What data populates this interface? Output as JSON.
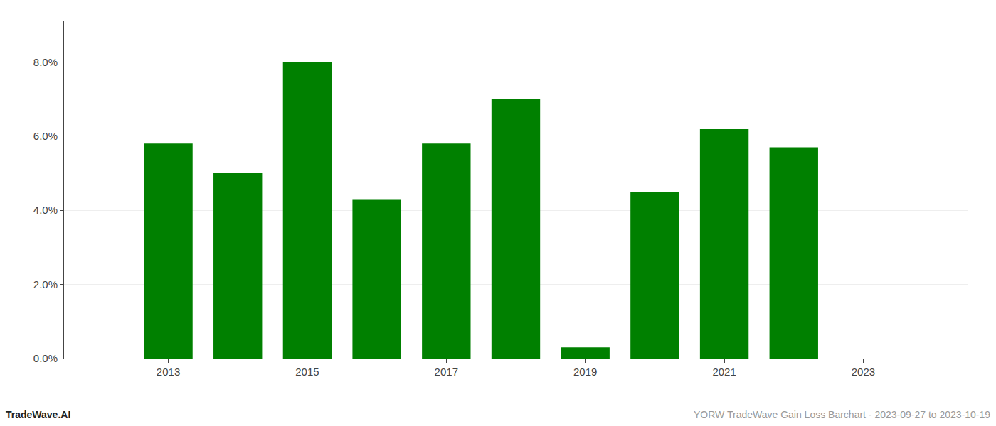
{
  "chart_data": {
    "type": "bar",
    "x": [
      2013,
      2014,
      2015,
      2016,
      2017,
      2018,
      2019,
      2020,
      2021,
      2022
    ],
    "values": [
      0.058,
      0.05,
      0.08,
      0.043,
      0.058,
      0.07,
      0.003,
      0.045,
      0.062,
      0.057
    ],
    "color": "#008000",
    "xlim": [
      2011.5,
      2024.5
    ],
    "xticks": [
      2013,
      2015,
      2017,
      2019,
      2021,
      2023
    ],
    "ylim": [
      0.0,
      0.091
    ],
    "yticks": [
      {
        "value": 0.0,
        "label": "0.0%"
      },
      {
        "value": 0.02,
        "label": "2.0%"
      },
      {
        "value": 0.04,
        "label": "4.0%"
      },
      {
        "value": 0.06,
        "label": "6.0%"
      },
      {
        "value": 0.08,
        "label": "8.0%"
      }
    ],
    "grid": true,
    "annotations": [
      {
        "text": "TradeWave.AI",
        "color": "#222222"
      },
      {
        "text": "YORW TradeWave Gain Loss Barchart - 2023-09-27 to 2023-10-19",
        "color": "#999999"
      }
    ]
  }
}
